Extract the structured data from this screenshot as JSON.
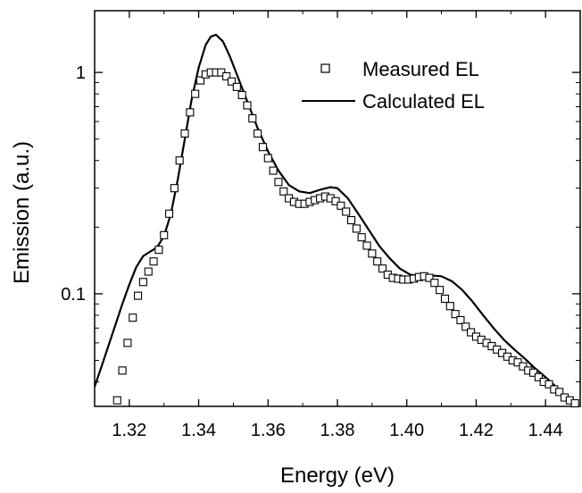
{
  "chart_data": {
    "type": "line",
    "xlabel": "Energy (eV)",
    "ylabel": "Emission (a.u.)",
    "xlim": [
      1.31,
      1.45
    ],
    "ylim": [
      0.031,
      1.9
    ],
    "yscale": "log",
    "x_ticks": [
      1.32,
      1.34,
      1.36,
      1.38,
      1.4,
      1.42,
      1.44
    ],
    "x_tick_labels": [
      "1.32",
      "1.34",
      "1.36",
      "1.38",
      "1.40",
      "1.42",
      "1.44"
    ],
    "y_ticks": [
      0.1,
      1
    ],
    "y_tick_labels": [
      "0.1",
      "1"
    ],
    "grid": false,
    "legend_position": "top-right",
    "series": [
      {
        "name": "Measured EL",
        "style": "open-square markers",
        "color": "#000000",
        "x": [
          1.3165,
          1.318,
          1.3195,
          1.321,
          1.3225,
          1.324,
          1.3255,
          1.327,
          1.3285,
          1.33,
          1.3315,
          1.333,
          1.3345,
          1.336,
          1.3375,
          1.339,
          1.3405,
          1.342,
          1.3435,
          1.345,
          1.3465,
          1.348,
          1.3495,
          1.351,
          1.3525,
          1.354,
          1.3555,
          1.357,
          1.3585,
          1.36,
          1.3615,
          1.363,
          1.3645,
          1.366,
          1.3675,
          1.369,
          1.3705,
          1.372,
          1.3735,
          1.375,
          1.3765,
          1.378,
          1.3795,
          1.381,
          1.3825,
          1.384,
          1.3855,
          1.387,
          1.3885,
          1.39,
          1.3915,
          1.393,
          1.3945,
          1.396,
          1.3975,
          1.399,
          1.4005,
          1.402,
          1.4035,
          1.405,
          1.4065,
          1.408,
          1.4095,
          1.411,
          1.4125,
          1.414,
          1.4155,
          1.417,
          1.4185,
          1.42,
          1.4215,
          1.423,
          1.4245,
          1.426,
          1.4275,
          1.429,
          1.4305,
          1.432,
          1.4335,
          1.435,
          1.4365,
          1.438,
          1.4395,
          1.441,
          1.4425,
          1.444,
          1.4455,
          1.447,
          1.4485
        ],
        "y": [
          0.033,
          0.045,
          0.06,
          0.078,
          0.098,
          0.113,
          0.126,
          0.14,
          0.158,
          0.184,
          0.23,
          0.3,
          0.4,
          0.53,
          0.66,
          0.8,
          0.92,
          0.98,
          1.0,
          1.0,
          1.0,
          0.96,
          0.91,
          0.86,
          0.79,
          0.71,
          0.62,
          0.53,
          0.46,
          0.41,
          0.36,
          0.32,
          0.29,
          0.27,
          0.26,
          0.255,
          0.255,
          0.26,
          0.265,
          0.27,
          0.275,
          0.27,
          0.262,
          0.25,
          0.235,
          0.215,
          0.197,
          0.18,
          0.165,
          0.152,
          0.14,
          0.13,
          0.122,
          0.118,
          0.117,
          0.116,
          0.116,
          0.117,
          0.119,
          0.12,
          0.118,
          0.112,
          0.104,
          0.095,
          0.088,
          0.081,
          0.076,
          0.071,
          0.067,
          0.064,
          0.062,
          0.06,
          0.058,
          0.056,
          0.054,
          0.052,
          0.05,
          0.049,
          0.047,
          0.045,
          0.044,
          0.042,
          0.04,
          0.039,
          0.037,
          0.036,
          0.034,
          0.033,
          0.032
        ]
      },
      {
        "name": "Calculated EL",
        "style": "solid line",
        "color": "#000000",
        "x": [
          1.31,
          1.312,
          1.315,
          1.318,
          1.32,
          1.322,
          1.324,
          1.326,
          1.328,
          1.33,
          1.332,
          1.334,
          1.336,
          1.338,
          1.34,
          1.342,
          1.3435,
          1.345,
          1.347,
          1.349,
          1.351,
          1.354,
          1.357,
          1.36,
          1.363,
          1.366,
          1.369,
          1.372,
          1.375,
          1.378,
          1.38,
          1.383,
          1.386,
          1.389,
          1.392,
          1.395,
          1.398,
          1.401,
          1.404,
          1.407,
          1.41,
          1.413,
          1.416,
          1.419,
          1.422,
          1.425,
          1.428,
          1.431,
          1.434,
          1.437,
          1.44,
          1.443,
          1.446,
          1.449
        ],
        "y": [
          0.038,
          0.047,
          0.065,
          0.09,
          0.11,
          0.132,
          0.148,
          0.155,
          0.162,
          0.182,
          0.23,
          0.33,
          0.5,
          0.76,
          1.05,
          1.33,
          1.45,
          1.48,
          1.38,
          1.18,
          0.98,
          0.74,
          0.56,
          0.44,
          0.36,
          0.31,
          0.29,
          0.285,
          0.295,
          0.303,
          0.3,
          0.27,
          0.23,
          0.195,
          0.165,
          0.145,
          0.13,
          0.122,
          0.12,
          0.121,
          0.12,
          0.114,
          0.104,
          0.092,
          0.08,
          0.07,
          0.062,
          0.056,
          0.051,
          0.046,
          0.042,
          0.038,
          0.034,
          0.031
        ]
      }
    ]
  }
}
